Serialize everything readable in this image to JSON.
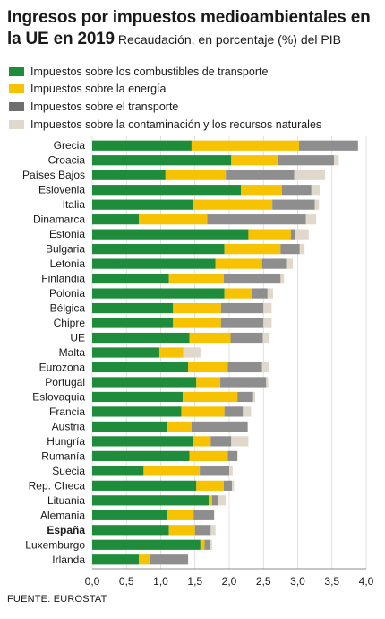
{
  "title": "Ingresos por impuestos medioambientales en la UE en 2019",
  "subtitle": "Recaudación, en porcentaje (%) del PIB",
  "source": "FUENTE: EUROSTAT",
  "colors": {
    "transport_fuel": "#1e8c3a",
    "energy": "#f7c200",
    "transport": "#8e8e8e",
    "pollution": "#e0d8cb"
  },
  "chart_data": {
    "type": "bar",
    "orientation": "horizontal",
    "stacked": true,
    "title": "Ingresos por impuestos medioambientales en la UE en 2019",
    "subtitle": "Recaudación, en porcentaje (%) del PIB",
    "xlim": [
      0,
      4.0
    ],
    "xticks": [
      "0,0",
      "0,5",
      "1,0",
      "1,5",
      "2,0",
      "2,5",
      "3,0",
      "3,5",
      "4,0"
    ],
    "grid": true,
    "legend_position": "top",
    "highlighted_category": "España",
    "categories": [
      "Grecia",
      "Croacia",
      "Países Bajos",
      "Eslovenia",
      "Italia",
      "Dinamarca",
      "Estonia",
      "Bulgaria",
      "Letonia",
      "Finlandia",
      "Polonia",
      "Bélgica",
      "Chipre",
      "UE",
      "Malta",
      "Eurozona",
      "Portugal",
      "Eslovaquia",
      "Francia",
      "Austria",
      "Hungría",
      "Rumanía",
      "Suecia",
      "Rep. Checa",
      "Lituania",
      "Alemania",
      "España",
      "Luxemburgo",
      "Irlanda"
    ],
    "series": [
      {
        "name": "Impuestos sobre los combustibles de transporte",
        "color": "#1e8c3a",
        "values": [
          1.45,
          2.03,
          1.07,
          2.17,
          1.48,
          0.68,
          2.28,
          1.93,
          1.8,
          1.12,
          1.93,
          1.18,
          1.18,
          1.42,
          0.98,
          1.4,
          1.52,
          1.32,
          1.3,
          1.1,
          1.48,
          1.42,
          0.75,
          1.52,
          1.7,
          1.1,
          1.12,
          1.58,
          0.68
        ]
      },
      {
        "name": "Impuestos sobre la energía",
        "color": "#f7c200",
        "values": [
          1.57,
          0.68,
          0.88,
          0.6,
          1.15,
          1.0,
          0.62,
          0.82,
          0.68,
          0.8,
          0.4,
          0.7,
          0.7,
          0.6,
          0.35,
          0.58,
          0.35,
          0.8,
          0.63,
          0.35,
          0.25,
          0.56,
          0.82,
          0.4,
          0.05,
          0.38,
          0.38,
          0.06,
          0.17
        ]
      },
      {
        "name": "Impuestos sobre el transporte",
        "color": "#8e8e8e",
        "values": [
          0.86,
          0.82,
          1.0,
          0.43,
          0.62,
          1.44,
          0.06,
          0.28,
          0.35,
          0.83,
          0.23,
          0.62,
          0.62,
          0.47,
          0.0,
          0.5,
          0.67,
          0.23,
          0.27,
          0.82,
          0.3,
          0.14,
          0.43,
          0.12,
          0.08,
          0.3,
          0.23,
          0.08,
          0.55
        ]
      },
      {
        "name": "Impuestos sobre la contaminación y los recursos naturales",
        "color": "#e0d8cb",
        "values": [
          0.0,
          0.07,
          0.45,
          0.12,
          0.06,
          0.15,
          0.2,
          0.07,
          0.1,
          0.05,
          0.08,
          0.12,
          0.12,
          0.1,
          0.25,
          0.1,
          0.03,
          0.03,
          0.12,
          0.0,
          0.25,
          0.0,
          0.05,
          0.03,
          0.12,
          0.0,
          0.07,
          0.03,
          0.0
        ]
      }
    ]
  }
}
